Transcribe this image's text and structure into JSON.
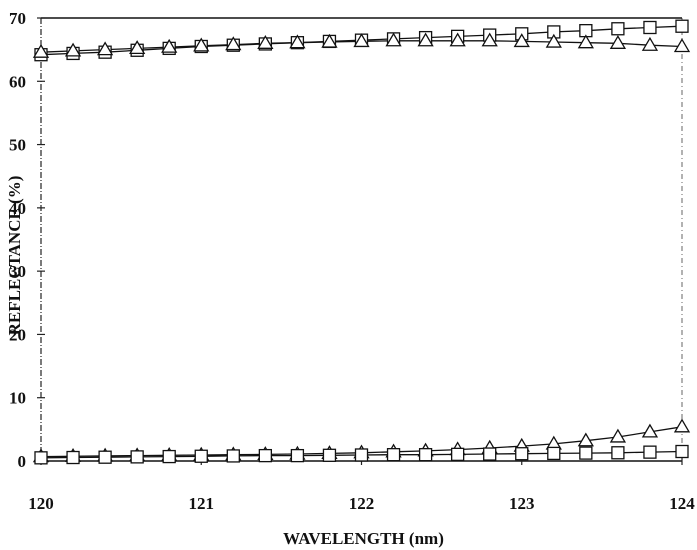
{
  "chart_data": {
    "type": "line",
    "title": "",
    "xlabel": "WAVELENGTH (nm)",
    "ylabel": "REFLECTANCE (%)",
    "xlim": [
      120,
      124
    ],
    "ylim": [
      0,
      70
    ],
    "xticks": [
      "120",
      "121",
      "122",
      "123",
      "124"
    ],
    "yticks": [
      "0",
      "10",
      "20",
      "30",
      "40",
      "50",
      "60",
      "70"
    ],
    "grid": false,
    "series": [
      {
        "marker": "square",
        "x": [
          120.0,
          120.2,
          120.4,
          120.6,
          120.8,
          121.0,
          121.2,
          121.4,
          121.6,
          121.8,
          122.0,
          122.2,
          122.4,
          122.6,
          122.8,
          123.0,
          123.2,
          123.4,
          123.6,
          123.8,
          124.0
        ],
        "y": [
          64.2,
          64.4,
          64.6,
          64.9,
          65.2,
          65.5,
          65.7,
          65.9,
          66.1,
          66.3,
          66.5,
          66.7,
          66.9,
          67.1,
          67.3,
          67.5,
          67.8,
          68.0,
          68.3,
          68.5,
          68.7
        ]
      },
      {
        "marker": "triangle",
        "x": [
          120.0,
          120.2,
          120.4,
          120.6,
          120.8,
          121.0,
          121.2,
          121.4,
          121.6,
          121.8,
          122.0,
          122.2,
          122.4,
          122.6,
          122.8,
          123.0,
          123.2,
          123.4,
          123.6,
          123.8,
          124.0
        ],
        "y": [
          64.6,
          64.8,
          65.0,
          65.2,
          65.4,
          65.6,
          65.8,
          66.0,
          66.1,
          66.2,
          66.3,
          66.4,
          66.4,
          66.4,
          66.4,
          66.3,
          66.2,
          66.1,
          66.0,
          65.7,
          65.5
        ]
      },
      {
        "marker": "triangle",
        "x": [
          120.0,
          120.2,
          120.4,
          120.6,
          120.8,
          121.0,
          121.2,
          121.4,
          121.6,
          121.8,
          122.0,
          122.2,
          122.4,
          122.6,
          122.8,
          123.0,
          123.2,
          123.4,
          123.6,
          123.8,
          124.0
        ],
        "y": [
          0.7,
          0.75,
          0.8,
          0.85,
          0.9,
          0.95,
          1.0,
          1.05,
          1.1,
          1.2,
          1.3,
          1.45,
          1.6,
          1.8,
          2.05,
          2.35,
          2.7,
          3.2,
          3.8,
          4.6,
          5.4
        ]
      },
      {
        "marker": "square",
        "x": [
          120.0,
          120.2,
          120.4,
          120.6,
          120.8,
          121.0,
          121.2,
          121.4,
          121.6,
          121.8,
          122.0,
          122.2,
          122.4,
          122.6,
          122.8,
          123.0,
          123.2,
          123.4,
          123.6,
          123.8,
          124.0
        ],
        "y": [
          0.5,
          0.55,
          0.6,
          0.65,
          0.7,
          0.75,
          0.8,
          0.85,
          0.85,
          0.9,
          0.95,
          1.0,
          1.0,
          1.05,
          1.1,
          1.15,
          1.2,
          1.25,
          1.3,
          1.4,
          1.5
        ]
      }
    ]
  }
}
